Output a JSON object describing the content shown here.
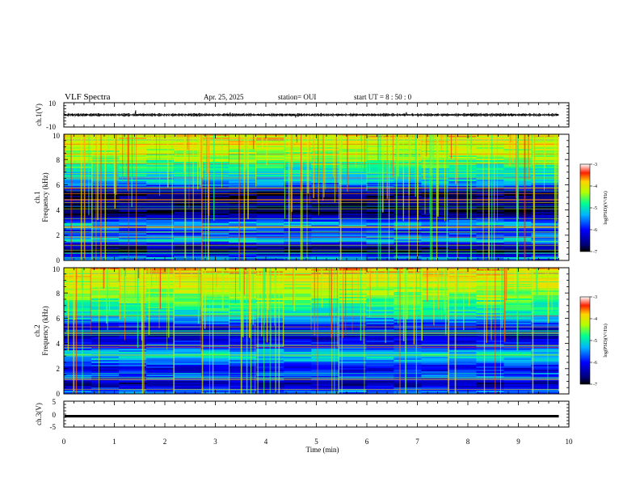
{
  "header": {
    "title": "VLF Spectra",
    "date": "Apr. 25, 2025",
    "station": "station= OUI",
    "start": "start  UT  =   8  : 50 : 0"
  },
  "chart_data": {
    "type": "heatmap",
    "title": "VLF Spectra",
    "xlabel": "Time  (min)",
    "xlim": [
      0,
      10
    ],
    "x_ticks": [
      "0",
      "1",
      "2",
      "3",
      "4",
      "5",
      "6",
      "7",
      "8",
      "9",
      "10"
    ],
    "data_end_min": 9.8,
    "panels": [
      {
        "kind": "waveform",
        "ylabel": "ch.1(V)",
        "ylim": [
          -10,
          10
        ],
        "y_ticks": [
          "10",
          "-10"
        ],
        "baseline": 0,
        "style": "noisy"
      },
      {
        "kind": "spectrogram",
        "ylabel_top": "ch.1",
        "ylabel": "Frequency  (kHz)",
        "ylim": [
          0,
          10
        ],
        "y_ticks": [
          "0",
          "2",
          "4",
          "6",
          "8",
          "10"
        ],
        "colorbar": {
          "label": "log(PSD)(V²/Hz)",
          "range": [
            -7,
            -3
          ],
          "ticks": [
            "-3",
            "-4",
            "-5",
            "-6",
            "-7"
          ]
        },
        "seed": 11,
        "bands": [
          {
            "kHz": 0.2,
            "level": 0.35
          },
          {
            "kHz": 0.7,
            "level": 0.05
          },
          {
            "kHz": 1.2,
            "level": 0.15
          },
          {
            "kHz": 1.6,
            "level": 0.45
          },
          {
            "kHz": 2.3,
            "level": 0.25
          },
          {
            "kHz": 2.9,
            "level": 0.45
          },
          {
            "kHz": 3.3,
            "level": 0.2
          },
          {
            "kHz": 3.8,
            "level": 0.05
          },
          {
            "kHz": 4.6,
            "level": 0.1
          },
          {
            "kHz": 5.3,
            "level": 0.05
          },
          {
            "kHz": 6.3,
            "level": 0.45
          },
          {
            "kHz": 7.1,
            "level": 0.5
          },
          {
            "kHz": 8.3,
            "level": 0.65
          },
          {
            "kHz": 9.2,
            "level": 0.72
          },
          {
            "kHz": 9.8,
            "level": 0.78
          }
        ]
      },
      {
        "kind": "spectrogram",
        "ylabel_top": "ch.2",
        "ylabel": "Frequency  (kHz)",
        "ylim": [
          0,
          10
        ],
        "y_ticks": [
          "0",
          "2",
          "4",
          "6",
          "8",
          "10"
        ],
        "colorbar": {
          "label": "log(PSD)(V²/Hz)",
          "range": [
            -7,
            -3
          ],
          "ticks": [
            "-3",
            "-4",
            "-5",
            "-6",
            "-7"
          ]
        },
        "seed": 29,
        "bands": [
          {
            "kHz": 0.2,
            "level": 0.35
          },
          {
            "kHz": 0.8,
            "level": 0.1
          },
          {
            "kHz": 1.4,
            "level": 0.35
          },
          {
            "kHz": 2.0,
            "level": 0.2
          },
          {
            "kHz": 2.6,
            "level": 0.4
          },
          {
            "kHz": 3.1,
            "level": 0.5
          },
          {
            "kHz": 3.7,
            "level": 0.3
          },
          {
            "kHz": 4.6,
            "level": 0.15
          },
          {
            "kHz": 5.4,
            "level": 0.25
          },
          {
            "kHz": 6.2,
            "level": 0.5
          },
          {
            "kHz": 7.0,
            "level": 0.55
          },
          {
            "kHz": 8.2,
            "level": 0.68
          },
          {
            "kHz": 9.2,
            "level": 0.74
          },
          {
            "kHz": 9.8,
            "level": 0.8
          }
        ]
      },
      {
        "kind": "waveform",
        "ylabel": "ch.3(V)",
        "ylim": [
          -5,
          5
        ],
        "y_ticks": [
          "5",
          "0",
          "-5"
        ],
        "baseline": -0.8,
        "style": "thick"
      }
    ]
  }
}
